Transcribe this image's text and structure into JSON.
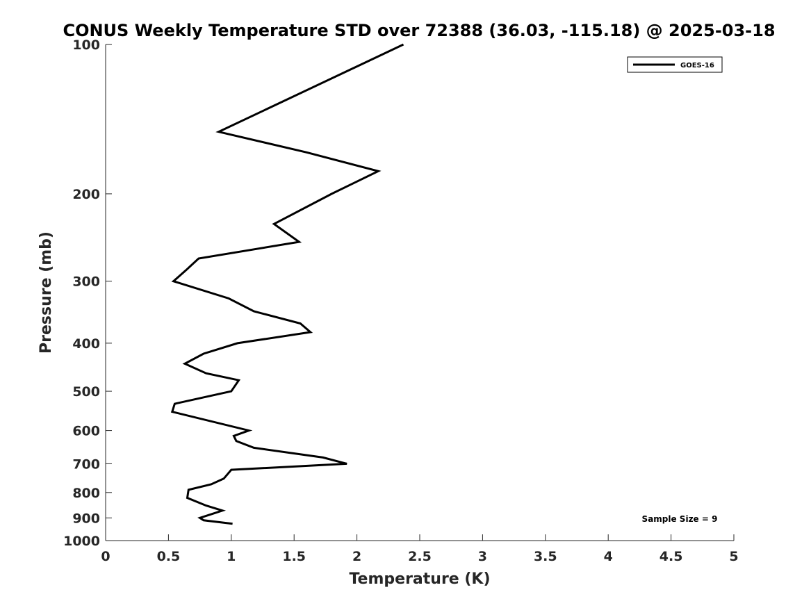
{
  "chart_data": {
    "type": "line",
    "title": "CONUS Weekly Temperature STD over 72388 (36.03, -115.18) @ 2025-03-18",
    "xlabel": "Temperature (K)",
    "ylabel": "Pressure (mb)",
    "xlim": [
      0,
      5
    ],
    "ylim": [
      100,
      1000
    ],
    "y_scale": "log",
    "y_reversed": true,
    "x_ticks": [
      "0",
      "0.5",
      "1",
      "1.5",
      "2",
      "2.5",
      "3",
      "3.5",
      "4",
      "4.5",
      "5"
    ],
    "y_ticks": [
      "100",
      "200",
      "300",
      "400",
      "500",
      "600",
      "700",
      "800",
      "900",
      "1000"
    ],
    "grid": false,
    "legend_position": "top-right",
    "series": [
      {
        "name": "GOES-16",
        "color": "#000000",
        "points": [
          {
            "p": 100,
            "t": 2.37
          },
          {
            "p": 150,
            "t": 0.9
          },
          {
            "p": 165,
            "t": 1.6
          },
          {
            "p": 180,
            "t": 2.17
          },
          {
            "p": 200,
            "t": 1.8
          },
          {
            "p": 230,
            "t": 1.34
          },
          {
            "p": 250,
            "t": 1.54
          },
          {
            "p": 270,
            "t": 0.74
          },
          {
            "p": 285,
            "t": 0.64
          },
          {
            "p": 300,
            "t": 0.54
          },
          {
            "p": 325,
            "t": 0.98
          },
          {
            "p": 345,
            "t": 1.18
          },
          {
            "p": 365,
            "t": 1.55
          },
          {
            "p": 380,
            "t": 1.63
          },
          {
            "p": 400,
            "t": 1.05
          },
          {
            "p": 420,
            "t": 0.78
          },
          {
            "p": 440,
            "t": 0.63
          },
          {
            "p": 460,
            "t": 0.8
          },
          {
            "p": 475,
            "t": 1.06
          },
          {
            "p": 500,
            "t": 1.0
          },
          {
            "p": 530,
            "t": 0.55
          },
          {
            "p": 550,
            "t": 0.53
          },
          {
            "p": 600,
            "t": 1.14
          },
          {
            "p": 615,
            "t": 1.02
          },
          {
            "p": 630,
            "t": 1.04
          },
          {
            "p": 650,
            "t": 1.18
          },
          {
            "p": 680,
            "t": 1.73
          },
          {
            "p": 700,
            "t": 1.92
          },
          {
            "p": 720,
            "t": 1.0
          },
          {
            "p": 750,
            "t": 0.94
          },
          {
            "p": 770,
            "t": 0.84
          },
          {
            "p": 790,
            "t": 0.66
          },
          {
            "p": 820,
            "t": 0.65
          },
          {
            "p": 850,
            "t": 0.8
          },
          {
            "p": 870,
            "t": 0.93
          },
          {
            "p": 885,
            "t": 0.84
          },
          {
            "p": 900,
            "t": 0.75
          },
          {
            "p": 910,
            "t": 0.78
          },
          {
            "p": 925,
            "t": 1.01
          }
        ]
      }
    ],
    "annotations": [
      "Sample Size = 9"
    ]
  }
}
